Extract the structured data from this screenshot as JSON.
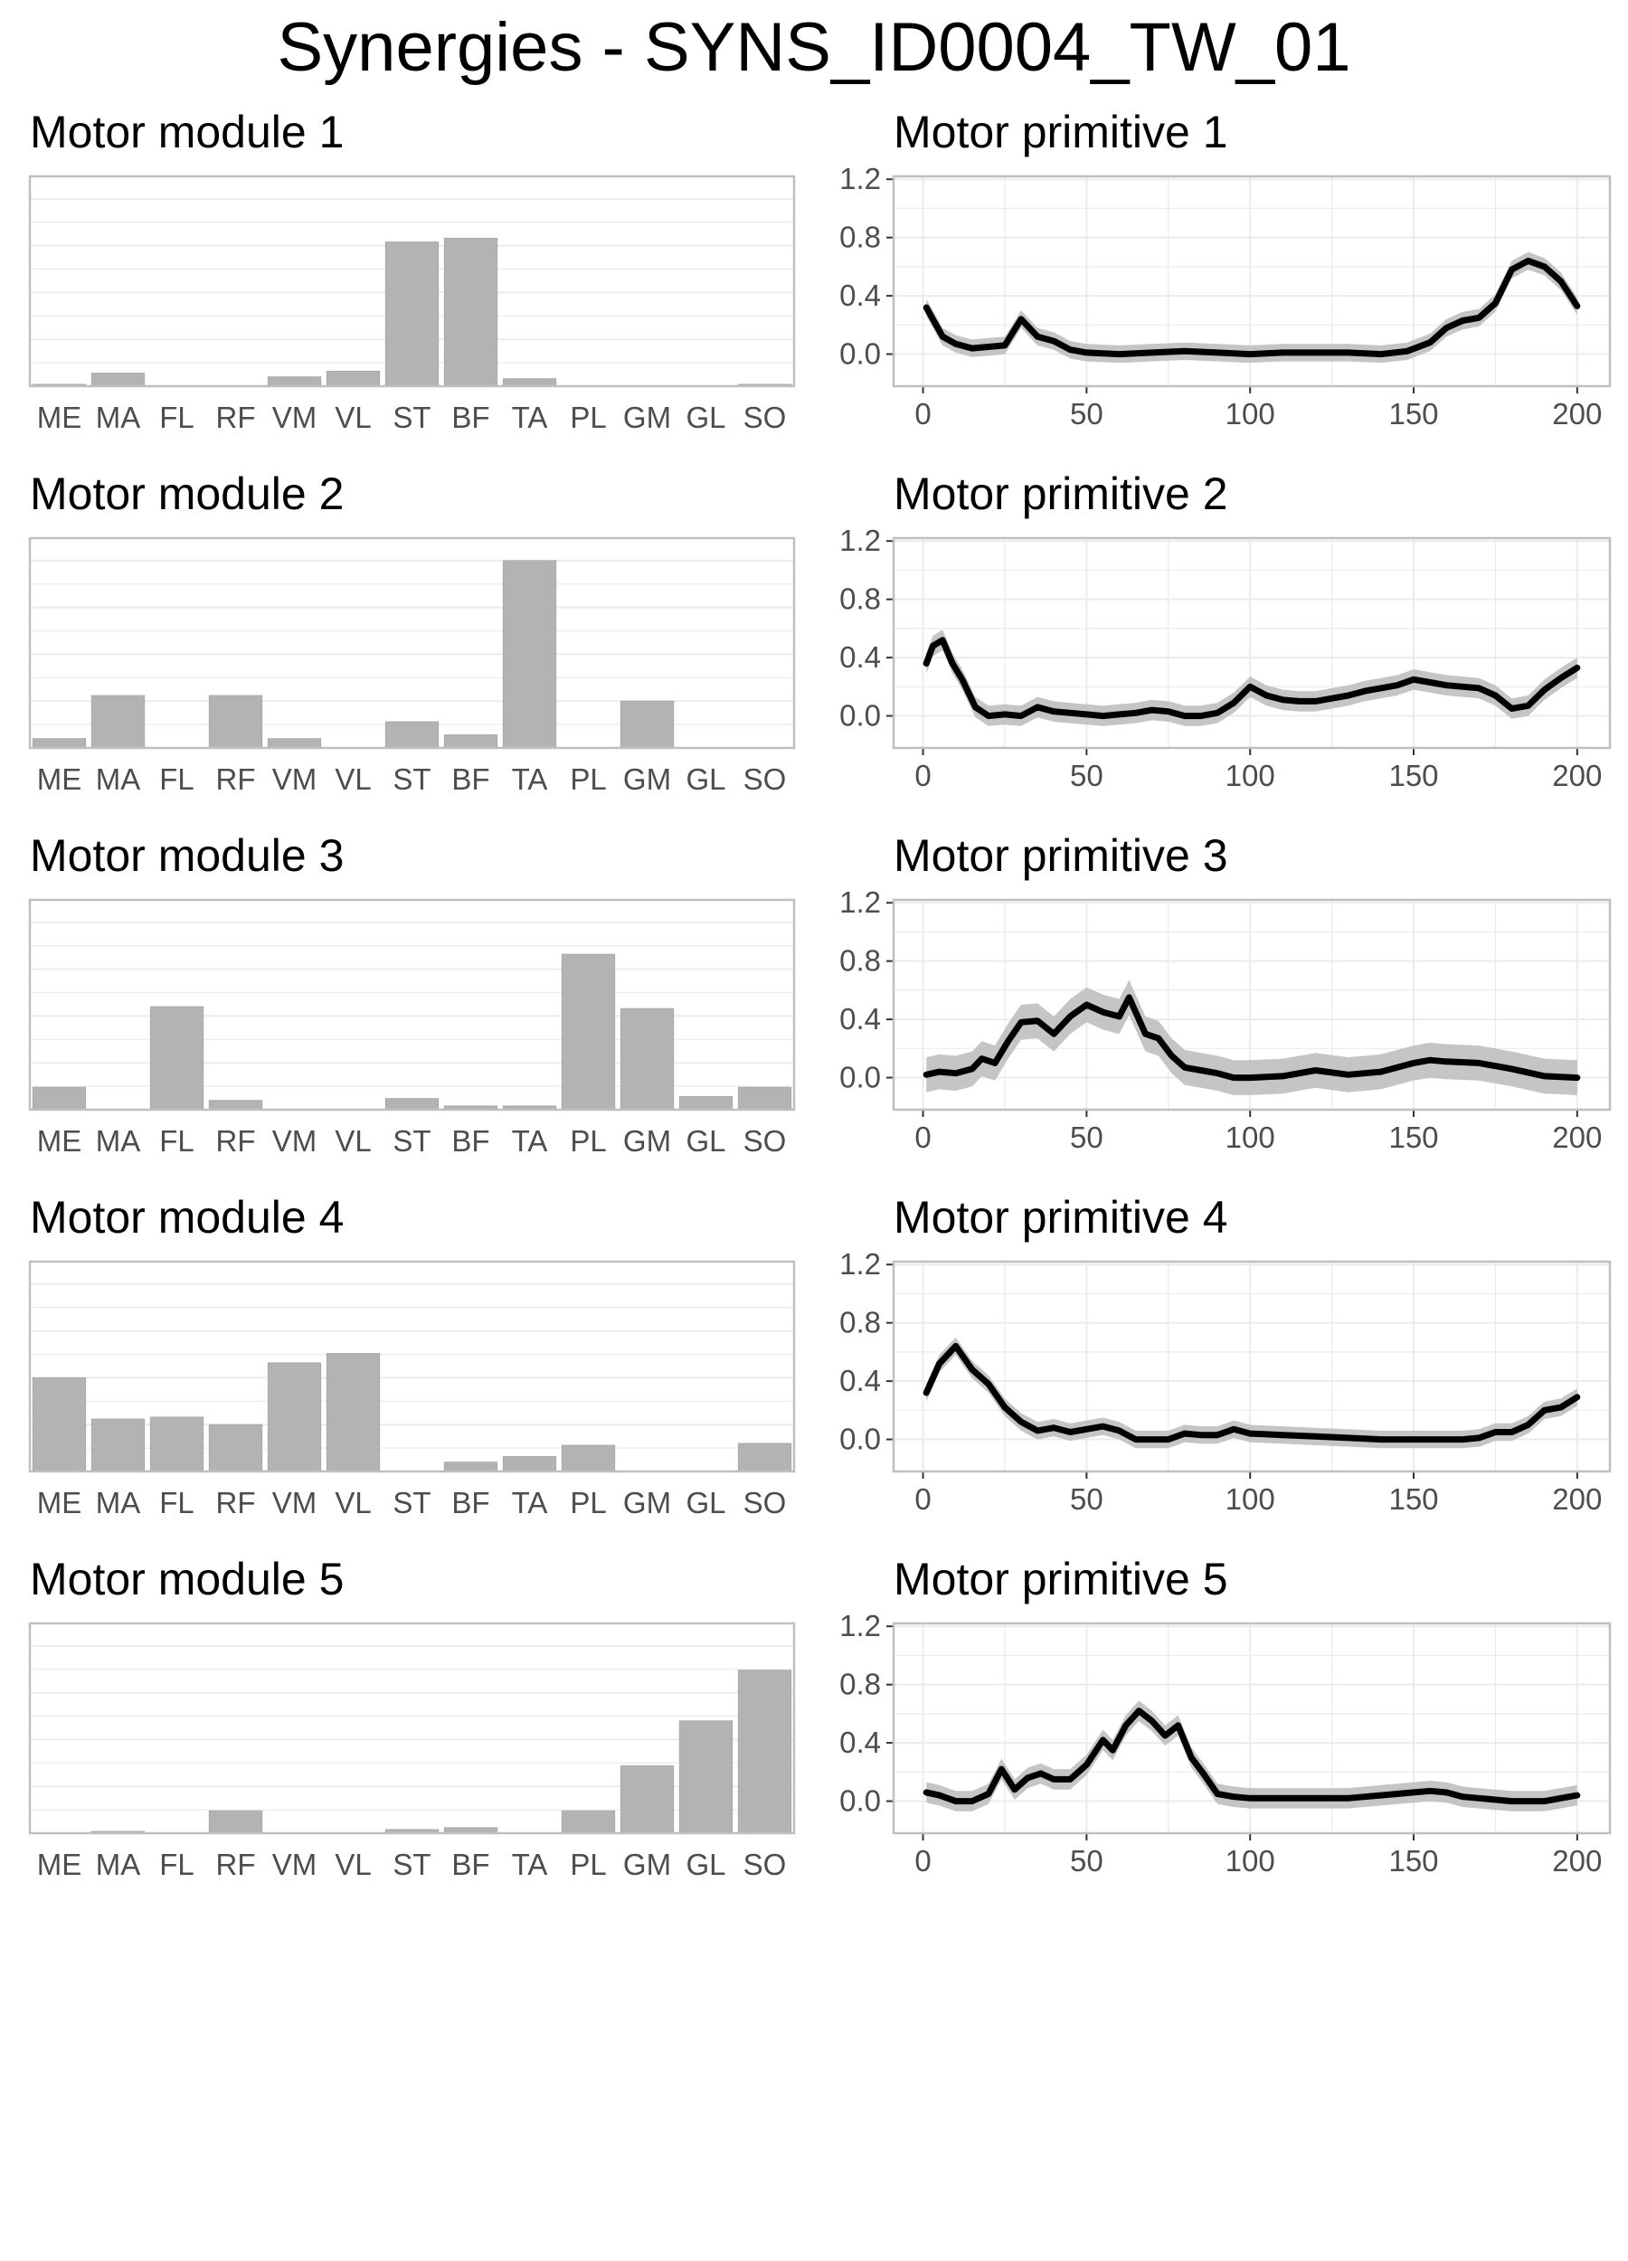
{
  "title": "Synergies - SYNS_ID0004_TW_01",
  "colors": {
    "bar_fill": "#b3b3b3",
    "line": "#000000",
    "ribbon": "#bfbfbf",
    "grid": "#ebebeb",
    "panel_border": "#bfbfbf",
    "tick_label": "#4d4d4d"
  },
  "chart_data": [
    {
      "type": "bar",
      "title": "Motor module 1",
      "categories": [
        "ME",
        "MA",
        "FL",
        "RF",
        "VM",
        "VL",
        "ST",
        "BF",
        "TA",
        "PL",
        "GM",
        "GL",
        "SO"
      ],
      "values": [
        0.01,
        0.07,
        0.0,
        0.0,
        0.05,
        0.08,
        0.77,
        0.79,
        0.04,
        0.0,
        0.0,
        0.0,
        0.01
      ],
      "ylim": [
        0,
        1.12
      ],
      "grid": true
    },
    {
      "type": "line",
      "title": "Motor primitive 1",
      "x": [
        1,
        6,
        10,
        15,
        20,
        25,
        30,
        35,
        40,
        45,
        50,
        60,
        70,
        80,
        90,
        100,
        110,
        120,
        130,
        140,
        148,
        155,
        160,
        165,
        170,
        175,
        180,
        185,
        190,
        195,
        200
      ],
      "y": [
        0.32,
        0.12,
        0.07,
        0.04,
        0.05,
        0.06,
        0.24,
        0.12,
        0.09,
        0.03,
        0.01,
        0.0,
        0.01,
        0.02,
        0.01,
        0.0,
        0.01,
        0.01,
        0.01,
        0.0,
        0.02,
        0.08,
        0.18,
        0.23,
        0.25,
        0.35,
        0.58,
        0.64,
        0.6,
        0.5,
        0.33
      ],
      "band": 0.06,
      "xlim": [
        -9,
        210
      ],
      "ylim": [
        -0.22,
        1.22
      ],
      "xticks": [
        "0",
        "50",
        "100",
        "150",
        "200"
      ],
      "yticks": [
        "0.0",
        "0.4",
        "0.8",
        "1.2"
      ],
      "grid": true
    },
    {
      "type": "bar",
      "title": "Motor module 2",
      "categories": [
        "ME",
        "MA",
        "FL",
        "RF",
        "VM",
        "VL",
        "ST",
        "BF",
        "TA",
        "PL",
        "GM",
        "GL",
        "SO"
      ],
      "values": [
        0.05,
        0.28,
        0.0,
        0.28,
        0.05,
        0.0,
        0.14,
        0.07,
        1.0,
        0.0,
        0.25,
        0.0,
        0.0
      ],
      "ylim": [
        0,
        1.12
      ],
      "grid": true
    },
    {
      "type": "line",
      "title": "Motor primitive 2",
      "x": [
        1,
        3,
        6,
        9,
        12,
        16,
        20,
        25,
        30,
        35,
        40,
        45,
        50,
        55,
        60,
        65,
        70,
        75,
        80,
        85,
        90,
        95,
        100,
        105,
        110,
        115,
        120,
        125,
        130,
        135,
        140,
        145,
        150,
        155,
        160,
        165,
        170,
        175,
        180,
        185,
        190,
        195,
        200
      ],
      "y": [
        0.36,
        0.48,
        0.52,
        0.36,
        0.25,
        0.06,
        0.0,
        0.01,
        0.0,
        0.06,
        0.03,
        0.02,
        0.01,
        0.0,
        0.01,
        0.02,
        0.04,
        0.03,
        0.0,
        0.0,
        0.02,
        0.09,
        0.2,
        0.14,
        0.11,
        0.1,
        0.1,
        0.12,
        0.14,
        0.17,
        0.19,
        0.21,
        0.25,
        0.23,
        0.21,
        0.2,
        0.19,
        0.14,
        0.05,
        0.07,
        0.18,
        0.26,
        0.33
      ],
      "band": 0.07,
      "xlim": [
        -9,
        210
      ],
      "ylim": [
        -0.22,
        1.22
      ],
      "xticks": [
        "0",
        "50",
        "100",
        "150",
        "200"
      ],
      "yticks": [
        "0.0",
        "0.4",
        "0.8",
        "1.2"
      ],
      "grid": true
    },
    {
      "type": "bar",
      "title": "Motor module 3",
      "categories": [
        "ME",
        "MA",
        "FL",
        "RF",
        "VM",
        "VL",
        "ST",
        "BF",
        "TA",
        "PL",
        "GM",
        "GL",
        "SO"
      ],
      "values": [
        0.12,
        0.0,
        0.55,
        0.05,
        0.0,
        0.0,
        0.06,
        0.02,
        0.02,
        0.83,
        0.54,
        0.07,
        0.12
      ],
      "ylim": [
        0,
        1.12
      ],
      "grid": true
    },
    {
      "type": "line",
      "title": "Motor primitive 3",
      "x": [
        1,
        5,
        10,
        15,
        18,
        22,
        26,
        30,
        35,
        40,
        45,
        50,
        55,
        60,
        63,
        68,
        72,
        76,
        80,
        85,
        90,
        95,
        100,
        110,
        120,
        130,
        140,
        150,
        155,
        160,
        170,
        180,
        190,
        200
      ],
      "y": [
        0.02,
        0.04,
        0.03,
        0.06,
        0.13,
        0.1,
        0.25,
        0.38,
        0.39,
        0.3,
        0.42,
        0.5,
        0.45,
        0.42,
        0.55,
        0.3,
        0.27,
        0.15,
        0.07,
        0.05,
        0.03,
        0.0,
        0.0,
        0.01,
        0.05,
        0.02,
        0.04,
        0.1,
        0.12,
        0.11,
        0.1,
        0.06,
        0.01,
        0.0
      ],
      "band": 0.12,
      "xlim": [
        -9,
        210
      ],
      "ylim": [
        -0.22,
        1.22
      ],
      "xticks": [
        "0",
        "50",
        "100",
        "150",
        "200"
      ],
      "yticks": [
        "0.0",
        "0.4",
        "0.8",
        "1.2"
      ],
      "grid": true
    },
    {
      "type": "bar",
      "title": "Motor module 4",
      "categories": [
        "ME",
        "MA",
        "FL",
        "RF",
        "VM",
        "VL",
        "ST",
        "BF",
        "TA",
        "PL",
        "GM",
        "GL",
        "SO"
      ],
      "values": [
        0.5,
        0.28,
        0.29,
        0.25,
        0.58,
        0.63,
        0.0,
        0.05,
        0.08,
        0.14,
        0.0,
        0.0,
        0.15
      ],
      "ylim": [
        0,
        1.12
      ],
      "grid": true
    },
    {
      "type": "line",
      "title": "Motor primitive 4",
      "x": [
        1,
        5,
        10,
        15,
        20,
        25,
        30,
        35,
        40,
        45,
        50,
        55,
        60,
        65,
        70,
        75,
        80,
        85,
        90,
        95,
        100,
        110,
        120,
        130,
        140,
        150,
        160,
        165,
        170,
        175,
        180,
        185,
        190,
        195,
        200
      ],
      "y": [
        0.32,
        0.52,
        0.64,
        0.48,
        0.38,
        0.22,
        0.12,
        0.06,
        0.08,
        0.05,
        0.07,
        0.09,
        0.06,
        0.0,
        0.0,
        0.0,
        0.04,
        0.03,
        0.03,
        0.07,
        0.04,
        0.03,
        0.02,
        0.01,
        0.0,
        0.0,
        0.0,
        0.0,
        0.01,
        0.05,
        0.05,
        0.1,
        0.2,
        0.22,
        0.29
      ],
      "band": 0.06,
      "xlim": [
        -9,
        210
      ],
      "ylim": [
        -0.22,
        1.22
      ],
      "xticks": [
        "0",
        "50",
        "100",
        "150",
        "200"
      ],
      "yticks": [
        "0.0",
        "0.4",
        "0.8",
        "1.2"
      ],
      "grid": true
    },
    {
      "type": "bar",
      "title": "Motor module 5",
      "categories": [
        "ME",
        "MA",
        "FL",
        "RF",
        "VM",
        "VL",
        "ST",
        "BF",
        "TA",
        "PL",
        "GM",
        "GL",
        "SO"
      ],
      "values": [
        0.0,
        0.01,
        0.0,
        0.12,
        0.0,
        0.0,
        0.02,
        0.03,
        0.0,
        0.12,
        0.36,
        0.6,
        0.87
      ],
      "ylim": [
        0,
        1.12
      ],
      "grid": true
    },
    {
      "type": "line",
      "title": "Motor primitive 5",
      "x": [
        1,
        5,
        10,
        15,
        20,
        24,
        28,
        32,
        36,
        40,
        45,
        50,
        55,
        58,
        62,
        66,
        70,
        74,
        78,
        82,
        86,
        90,
        95,
        100,
        110,
        120,
        130,
        140,
        150,
        155,
        160,
        165,
        170,
        180,
        190,
        200
      ],
      "y": [
        0.06,
        0.04,
        0.0,
        0.0,
        0.05,
        0.22,
        0.08,
        0.16,
        0.19,
        0.15,
        0.15,
        0.25,
        0.42,
        0.35,
        0.52,
        0.62,
        0.55,
        0.45,
        0.52,
        0.3,
        0.18,
        0.05,
        0.03,
        0.02,
        0.02,
        0.02,
        0.02,
        0.04,
        0.06,
        0.07,
        0.06,
        0.03,
        0.02,
        0.0,
        0.0,
        0.04
      ],
      "band": 0.07,
      "xlim": [
        -9,
        210
      ],
      "ylim": [
        -0.22,
        1.22
      ],
      "xticks": [
        "0",
        "50",
        "100",
        "150",
        "200"
      ],
      "yticks": [
        "0.0",
        "0.4",
        "0.8",
        "1.2"
      ],
      "grid": true
    }
  ]
}
